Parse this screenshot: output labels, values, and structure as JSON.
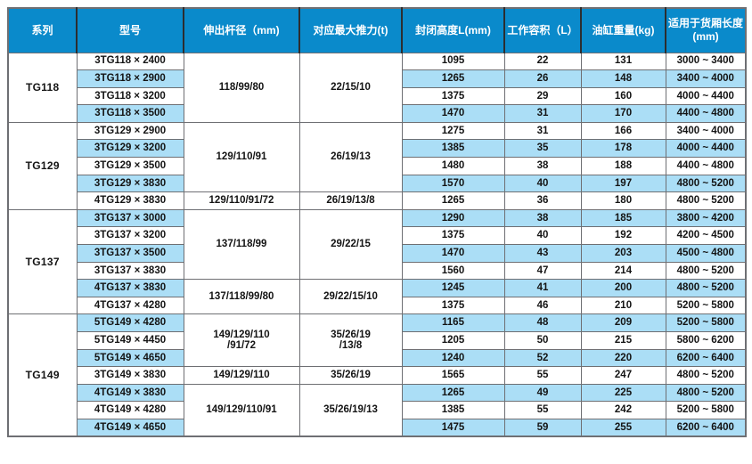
{
  "colors": {
    "header_bg": "#0a8acb",
    "header_text": "#ffffff",
    "row_alt_bg": "#abdef6",
    "row_bg": "#ffffff",
    "grid": "#6e6f73",
    "text": "#141414"
  },
  "chart_data": {
    "type": "table",
    "headers": [
      "系列",
      "型号",
      "伸出杆径（mm)",
      "对应最大推力(t)",
      "封闭高度L(mm)",
      "工作容积（L）",
      "油缸重量(kg)",
      "适用于货厢长度(mm)"
    ],
    "groups": [
      {
        "series": "TG118",
        "specs": [
          {
            "span": 4,
            "rod": "118/99/80",
            "thrust": "22/15/10"
          }
        ],
        "rows": [
          {
            "model": "3TG118 × 2400",
            "closed_height": "1095",
            "volume": "22",
            "weight": "131",
            "box_length": "3000 ~ 3400"
          },
          {
            "model": "3TG118 × 2900",
            "closed_height": "1265",
            "volume": "26",
            "weight": "148",
            "box_length": "3400 ~ 4000"
          },
          {
            "model": "3TG118 × 3200",
            "closed_height": "1375",
            "volume": "29",
            "weight": "160",
            "box_length": "4000 ~ 4400"
          },
          {
            "model": "3TG118 × 3500",
            "closed_height": "1470",
            "volume": "31",
            "weight": "170",
            "box_length": "4400 ~ 4800"
          }
        ]
      },
      {
        "series": "TG129",
        "specs": [
          {
            "span": 4,
            "rod": "129/110/91",
            "thrust": "26/19/13"
          },
          {
            "span": 1,
            "rod": "129/110/91/72",
            "thrust": "26/19/13/8"
          }
        ],
        "rows": [
          {
            "model": "3TG129 × 2900",
            "closed_height": "1275",
            "volume": "31",
            "weight": "166",
            "box_length": "3400 ~ 4000"
          },
          {
            "model": "3TG129 × 3200",
            "closed_height": "1385",
            "volume": "35",
            "weight": "178",
            "box_length": "4000 ~ 4400"
          },
          {
            "model": "3TG129 × 3500",
            "closed_height": "1480",
            "volume": "38",
            "weight": "188",
            "box_length": "4400 ~ 4800"
          },
          {
            "model": "3TG129 × 3830",
            "closed_height": "1570",
            "volume": "40",
            "weight": "197",
            "box_length": "4800 ~ 5200"
          },
          {
            "model": "4TG129 × 3830",
            "closed_height": "1265",
            "volume": "36",
            "weight": "180",
            "box_length": "4800 ~ 5200"
          }
        ]
      },
      {
        "series": "TG137",
        "specs": [
          {
            "span": 4,
            "rod": "137/118/99",
            "thrust": "29/22/15"
          },
          {
            "span": 2,
            "rod": "137/118/99/80",
            "thrust": "29/22/15/10"
          }
        ],
        "rows": [
          {
            "model": "3TG137 × 3000",
            "closed_height": "1290",
            "volume": "38",
            "weight": "185",
            "box_length": "3800 ~ 4200"
          },
          {
            "model": "3TG137 × 3200",
            "closed_height": "1375",
            "volume": "40",
            "weight": "192",
            "box_length": "4200 ~ 4500"
          },
          {
            "model": "3TG137 × 3500",
            "closed_height": "1470",
            "volume": "43",
            "weight": "203",
            "box_length": "4500 ~ 4800"
          },
          {
            "model": "3TG137 × 3830",
            "closed_height": "1560",
            "volume": "47",
            "weight": "214",
            "box_length": "4800 ~ 5200"
          },
          {
            "model": "4TG137 × 3830",
            "closed_height": "1245",
            "volume": "41",
            "weight": "200",
            "box_length": "4800 ~ 5200"
          },
          {
            "model": "4TG137 × 4280",
            "closed_height": "1375",
            "volume": "46",
            "weight": "210",
            "box_length": "5200 ~ 5800"
          }
        ]
      },
      {
        "series": "TG149",
        "specs": [
          {
            "span": 3,
            "rod": "149/129/110\n/91/72",
            "thrust": "35/26/19\n/13/8"
          },
          {
            "span": 1,
            "rod": "149/129/110",
            "thrust": "35/26/19"
          },
          {
            "span": 3,
            "rod": "149/129/110/91",
            "thrust": "35/26/19/13"
          }
        ],
        "rows": [
          {
            "model": "5TG149 × 4280",
            "closed_height": "1165",
            "volume": "48",
            "weight": "209",
            "box_length": "5200 ~ 5800"
          },
          {
            "model": "5TG149 × 4450",
            "closed_height": "1205",
            "volume": "50",
            "weight": "215",
            "box_length": "5800 ~ 6200"
          },
          {
            "model": "5TG149 × 4650",
            "closed_height": "1240",
            "volume": "52",
            "weight": "220",
            "box_length": "6200 ~ 6400"
          },
          {
            "model": "3TG149 × 3830",
            "closed_height": "1565",
            "volume": "55",
            "weight": "247",
            "box_length": "4800 ~ 5200"
          },
          {
            "model": "4TG149 × 3830",
            "closed_height": "1265",
            "volume": "49",
            "weight": "225",
            "box_length": "4800 ~ 5200"
          },
          {
            "model": "4TG149 × 4280",
            "closed_height": "1385",
            "volume": "55",
            "weight": "242",
            "box_length": "5200 ~ 5800"
          },
          {
            "model": "4TG149 × 4650",
            "closed_height": "1475",
            "volume": "59",
            "weight": "255",
            "box_length": "6200 ~ 6400"
          }
        ]
      }
    ]
  }
}
